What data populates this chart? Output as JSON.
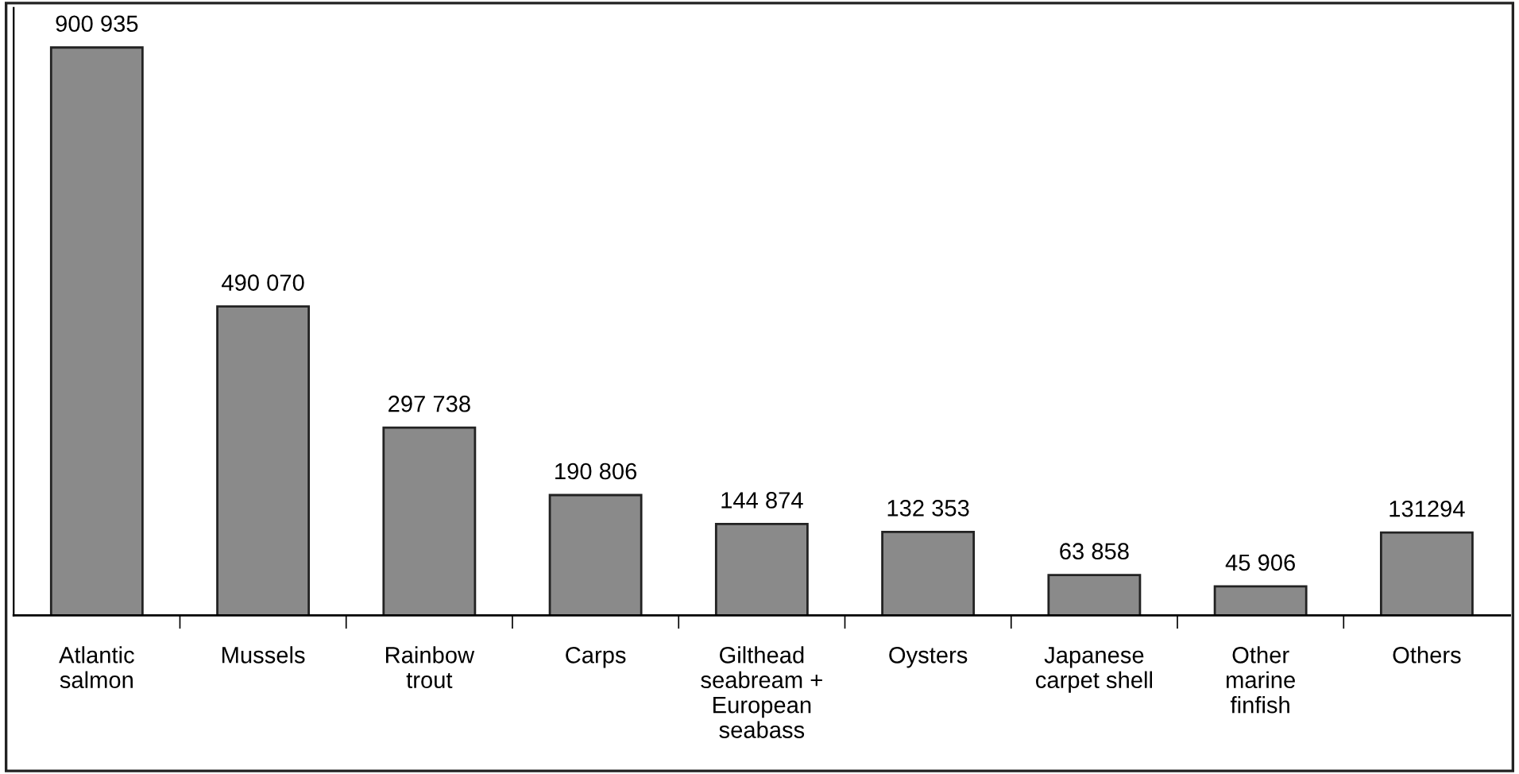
{
  "chart_data": {
    "type": "bar",
    "categories": [
      "Atlantic\nsalmon",
      "Mussels",
      "Rainbow\ntrout",
      "Carps",
      "Gilthead\nseabream +\nEuropean\nseabass",
      "Oysters",
      "Japanese\ncarpet shell",
      "Other\nmarine\nfinfish",
      "Others"
    ],
    "values": [
      900935,
      490070,
      297738,
      190806,
      144874,
      132353,
      63858,
      45906,
      131294
    ],
    "value_labels": [
      "900 935",
      "490 070",
      "297 738",
      "190 806",
      "144 874",
      "132 353",
      "63 858",
      "45 906",
      "131294"
    ],
    "color": "#8a8a8a",
    "grid": false,
    "legend": false
  }
}
